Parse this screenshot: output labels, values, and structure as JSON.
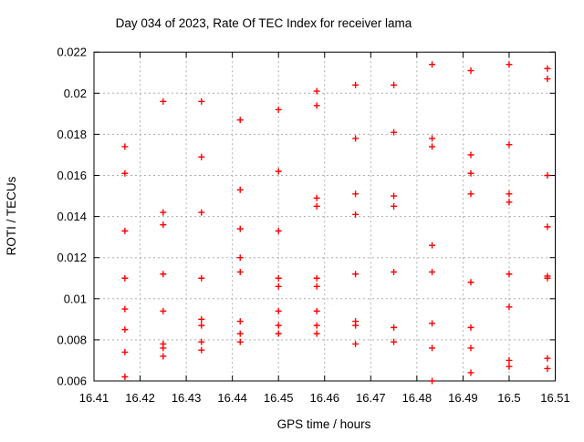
{
  "chart_data": {
    "type": "scatter",
    "title": "Day 034 of 2023, Rate Of TEC Index for receiver lama",
    "xlabel": "GPS time / hours",
    "ylabel": "ROTI / TECUs",
    "xlim": [
      16.41,
      16.51
    ],
    "ylim": [
      0.006,
      0.022
    ],
    "xticks": {
      "values": [
        16.41,
        16.42,
        16.43,
        16.44,
        16.45,
        16.46,
        16.47,
        16.48,
        16.49,
        16.5,
        16.51
      ],
      "labels": [
        "16.41",
        "16.42",
        "16.43",
        "16.44",
        "16.45",
        "16.46",
        "16.47",
        "16.48",
        "16.49",
        "16.5",
        "16.51"
      ]
    },
    "yticks": {
      "values": [
        0.006,
        0.008,
        0.01,
        0.012,
        0.014,
        0.016,
        0.018,
        0.02,
        0.022
      ],
      "labels": [
        "0.006",
        "0.008",
        "0.01",
        "0.012",
        "0.014",
        "0.016",
        "0.018",
        "0.02",
        "0.022"
      ]
    },
    "grid": true,
    "legend": "none",
    "marker": {
      "symbol": "plus",
      "color": "#ff0000",
      "size": 7
    },
    "series": [
      {
        "name": "ROTI",
        "points": [
          [
            16.4167,
            0.0174
          ],
          [
            16.4167,
            0.0161
          ],
          [
            16.4167,
            0.0133
          ],
          [
            16.4167,
            0.011
          ],
          [
            16.4167,
            0.0095
          ],
          [
            16.4167,
            0.0085
          ],
          [
            16.4167,
            0.0074
          ],
          [
            16.4167,
            0.0062
          ],
          [
            16.425,
            0.0196
          ],
          [
            16.425,
            0.0142
          ],
          [
            16.425,
            0.0136
          ],
          [
            16.425,
            0.0112
          ],
          [
            16.425,
            0.0094
          ],
          [
            16.425,
            0.0078
          ],
          [
            16.425,
            0.0076
          ],
          [
            16.425,
            0.0072
          ],
          [
            16.4333,
            0.0196
          ],
          [
            16.4333,
            0.0169
          ],
          [
            16.4333,
            0.0142
          ],
          [
            16.4333,
            0.011
          ],
          [
            16.4333,
            0.009
          ],
          [
            16.4333,
            0.0087
          ],
          [
            16.4333,
            0.0079
          ],
          [
            16.4333,
            0.0075
          ],
          [
            16.4417,
            0.0187
          ],
          [
            16.4417,
            0.0153
          ],
          [
            16.4417,
            0.0134
          ],
          [
            16.4417,
            0.012
          ],
          [
            16.4417,
            0.0113
          ],
          [
            16.4417,
            0.0089
          ],
          [
            16.4417,
            0.0083
          ],
          [
            16.4417,
            0.0079
          ],
          [
            16.45,
            0.0192
          ],
          [
            16.45,
            0.0162
          ],
          [
            16.45,
            0.0133
          ],
          [
            16.45,
            0.011
          ],
          [
            16.45,
            0.0106
          ],
          [
            16.45,
            0.0094
          ],
          [
            16.45,
            0.0087
          ],
          [
            16.45,
            0.0083
          ],
          [
            16.4583,
            0.0201
          ],
          [
            16.4583,
            0.0194
          ],
          [
            16.4583,
            0.0149
          ],
          [
            16.4583,
            0.0145
          ],
          [
            16.4583,
            0.011
          ],
          [
            16.4583,
            0.0106
          ],
          [
            16.4583,
            0.0094
          ],
          [
            16.4583,
            0.0087
          ],
          [
            16.4583,
            0.0083
          ],
          [
            16.4667,
            0.0204
          ],
          [
            16.4667,
            0.0178
          ],
          [
            16.4667,
            0.0151
          ],
          [
            16.4667,
            0.0141
          ],
          [
            16.4667,
            0.0112
          ],
          [
            16.4667,
            0.0089
          ],
          [
            16.4667,
            0.0087
          ],
          [
            16.4667,
            0.0078
          ],
          [
            16.475,
            0.0204
          ],
          [
            16.475,
            0.0181
          ],
          [
            16.475,
            0.015
          ],
          [
            16.475,
            0.0145
          ],
          [
            16.475,
            0.0113
          ],
          [
            16.475,
            0.0086
          ],
          [
            16.475,
            0.0079
          ],
          [
            16.4833,
            0.0214
          ],
          [
            16.4833,
            0.0178
          ],
          [
            16.4833,
            0.0174
          ],
          [
            16.4833,
            0.0126
          ],
          [
            16.4833,
            0.0113
          ],
          [
            16.4833,
            0.0088
          ],
          [
            16.4833,
            0.0076
          ],
          [
            16.4833,
            0.006
          ],
          [
            16.4917,
            0.0211
          ],
          [
            16.4917,
            0.017
          ],
          [
            16.4917,
            0.0161
          ],
          [
            16.4917,
            0.0151
          ],
          [
            16.4917,
            0.0108
          ],
          [
            16.4917,
            0.0086
          ],
          [
            16.4917,
            0.0076
          ],
          [
            16.4917,
            0.0064
          ],
          [
            16.5,
            0.0214
          ],
          [
            16.5,
            0.0175
          ],
          [
            16.5,
            0.0151
          ],
          [
            16.5,
            0.0147
          ],
          [
            16.5,
            0.0112
          ],
          [
            16.5,
            0.0096
          ],
          [
            16.5,
            0.007
          ],
          [
            16.5,
            0.0067
          ],
          [
            16.5083,
            0.0212
          ],
          [
            16.5083,
            0.0207
          ],
          [
            16.5083,
            0.016
          ],
          [
            16.5083,
            0.0135
          ],
          [
            16.5083,
            0.0111
          ],
          [
            16.5083,
            0.011
          ],
          [
            16.5083,
            0.0071
          ],
          [
            16.5083,
            0.0066
          ]
        ]
      }
    ]
  }
}
